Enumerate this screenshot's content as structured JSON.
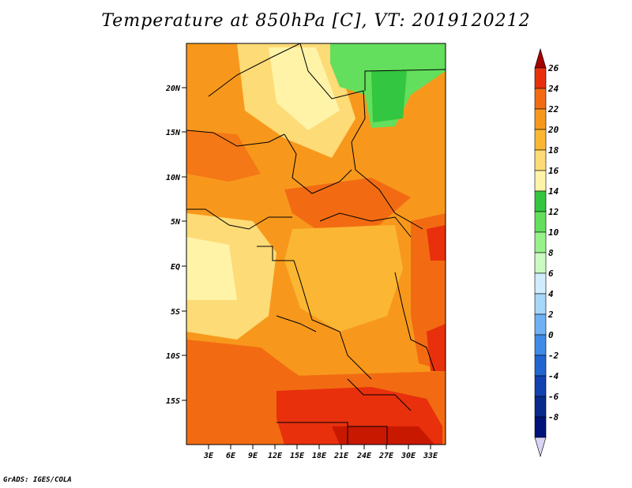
{
  "title": "Temperature at 850hPa [C], VT: 2019120212",
  "credit": "GrADS: IGES/COLA",
  "map": {
    "lat_labels": [
      "20N",
      "15N",
      "10N",
      "5N",
      "EQ",
      "5S",
      "10S",
      "15S"
    ],
    "lon_labels": [
      "3E",
      "6E",
      "9E",
      "12E",
      "15E",
      "18E",
      "21E",
      "24E",
      "27E",
      "30E",
      "33E"
    ]
  },
  "colorbar": {
    "levels": [
      "26",
      "24",
      "22",
      "20",
      "18",
      "16",
      "14",
      "12",
      "10",
      "8",
      "6",
      "4",
      "2",
      "0",
      "-2",
      "-4",
      "-6",
      "-8"
    ],
    "colors": [
      "#a50000",
      "#e8300d",
      "#f26b12",
      "#f7981c",
      "#fbb733",
      "#fddb76",
      "#fff3a8",
      "#33c640",
      "#63df5d",
      "#97f28a",
      "#c9fbc0",
      "#d0ecff",
      "#a7d6fb",
      "#6fb1f4",
      "#3f8be8",
      "#2265d2",
      "#1241b0",
      "#082a8c",
      "#00137a",
      "#d8d4f5"
    ]
  }
}
